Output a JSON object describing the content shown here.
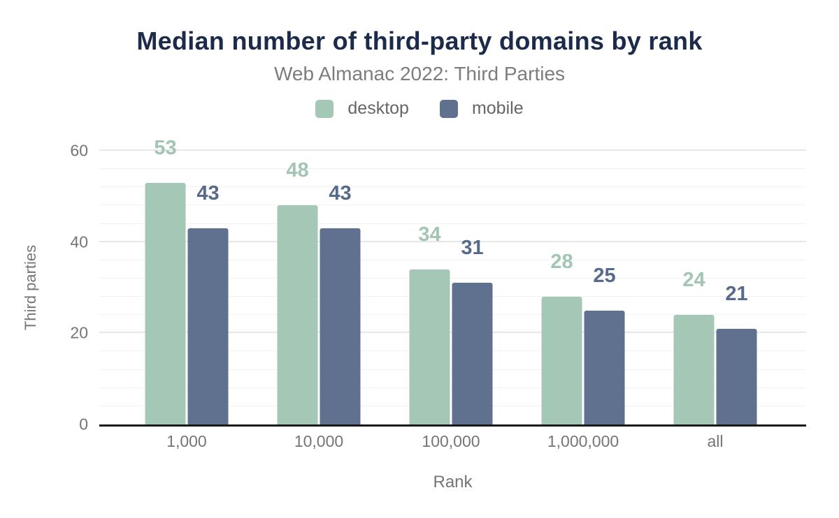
{
  "header": {
    "title": "Median number of third-party domains by rank",
    "subtitle": "Web Almanac 2022: Third Parties"
  },
  "legend": [
    {
      "label": "desktop",
      "color": "#a4c8b5"
    },
    {
      "label": "mobile",
      "color": "#5f718e"
    }
  ],
  "chart_data": {
    "type": "bar",
    "title": "Median number of third-party domains by rank",
    "subtitle": "Web Almanac 2022: Third Parties",
    "categories": [
      "1,000",
      "10,000",
      "100,000",
      "1,000,000",
      "all"
    ],
    "series": [
      {
        "name": "desktop",
        "color": "#a4c8b5",
        "label_color": "#a2c6b3",
        "values": [
          53,
          48,
          34,
          28,
          24
        ]
      },
      {
        "name": "mobile",
        "color": "#5f718e",
        "label_color": "#566a8c",
        "values": [
          43,
          43,
          31,
          25,
          21
        ]
      }
    ],
    "xlabel": "Rank",
    "ylabel": "Third parties",
    "ylim": [
      0,
      60
    ],
    "yticks": [
      0,
      20,
      40,
      60
    ],
    "minor_grid_step": 4,
    "major_grid_step": 20,
    "grid": "on",
    "legend_position": "top",
    "group_centers_pct": [
      12.36,
      31.06,
      49.75,
      68.45,
      87.14
    ]
  },
  "colors": {
    "title": "#1c2b4a",
    "subtitle_text": "#7d7d7d",
    "axis_text": "#757575",
    "legend_text": "#666666",
    "grid_major": "#e7e7e7",
    "grid_minor": "#f2f2f2",
    "axis_line": "#1a1a1a",
    "background": "#ffffff"
  }
}
